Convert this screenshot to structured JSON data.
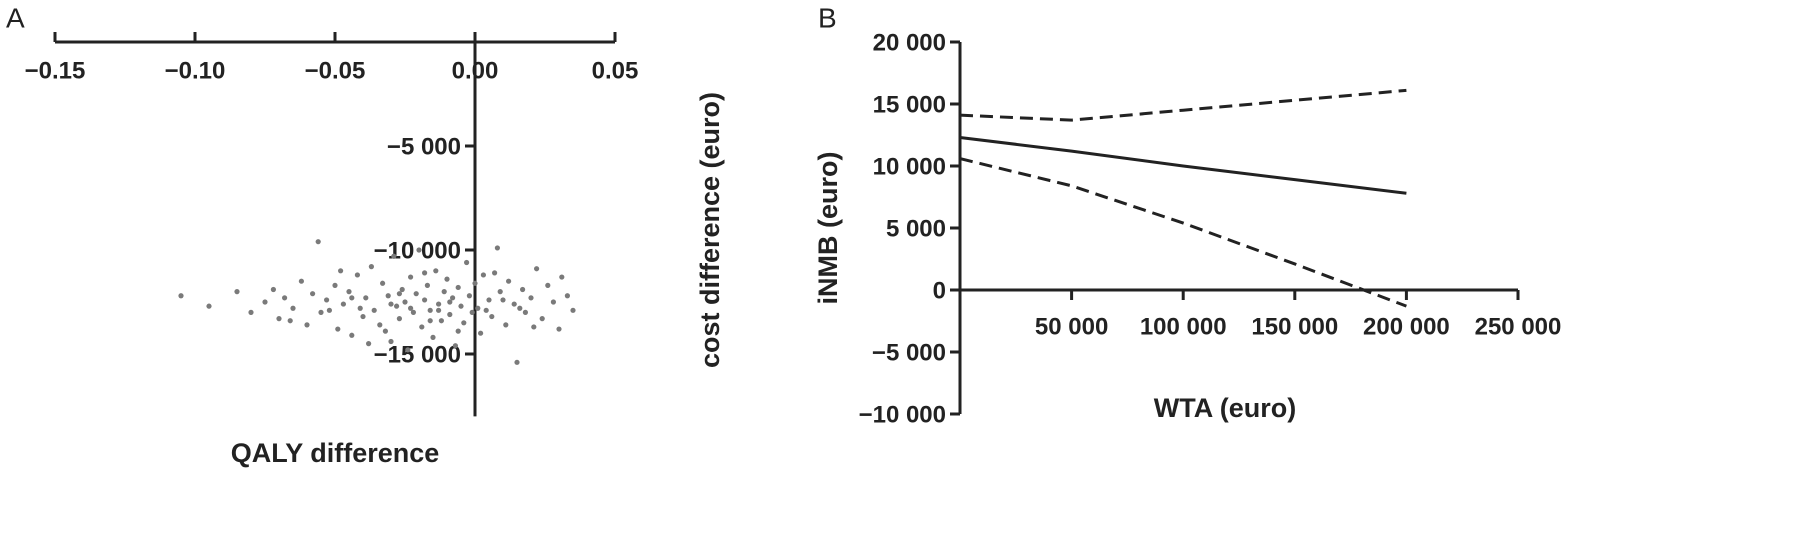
{
  "chart_data": [
    {
      "type": "scatter",
      "panel_label": "A",
      "xlabel": "QALY difference",
      "ylabel": "cost difference (euro)",
      "color": "#7a7a7a",
      "xlim": [
        -0.15,
        0.05
      ],
      "xticks": [
        {
          "value": -0.15,
          "label": "−0.15"
        },
        {
          "value": -0.1,
          "label": "−0.10"
        },
        {
          "value": -0.05,
          "label": "−0.05"
        },
        {
          "value": 0,
          "label": "0.00"
        },
        0.05
      ],
      "ylim": [
        -18000,
        0
      ],
      "yticks": [
        {
          "value": -5000,
          "label": "−5 000"
        },
        {
          "value": -10000,
          "label": "−10 000"
        },
        {
          "value": -15000,
          "label": "−15 000"
        }
      ],
      "x": [
        -0.105,
        -0.095,
        -0.085,
        -0.08,
        -0.075,
        -0.072,
        -0.07,
        -0.068,
        -0.065,
        -0.062,
        -0.06,
        -0.058,
        -0.056,
        -0.055,
        -0.053,
        -0.05,
        -0.049,
        -0.047,
        -0.045,
        -0.044,
        -0.042,
        -0.04,
        -0.039,
        -0.037,
        -0.036,
        -0.034,
        -0.033,
        -0.031,
        -0.03,
        -0.029,
        -0.028,
        -0.027,
        -0.026,
        -0.025,
        -0.024,
        -0.023,
        -0.022,
        -0.021,
        -0.02,
        -0.019,
        -0.018,
        -0.017,
        -0.016,
        -0.015,
        -0.014,
        -0.013,
        -0.012,
        -0.011,
        -0.01,
        -0.009,
        -0.008,
        -0.007,
        -0.006,
        -0.005,
        -0.004,
        -0.003,
        -0.002,
        -0.001,
        0,
        0.001,
        0.002,
        0.003,
        0.005,
        0.006,
        0.008,
        0.009,
        0.011,
        0.012,
        0.014,
        0.015,
        0.017,
        0.018,
        0.02,
        0.022,
        0.024,
        0.026,
        0.028,
        0.03,
        0.031,
        0.033,
        0.035,
        -0.048,
        -0.032,
        -0.018,
        -0.006,
        0.007,
        -0.041,
        -0.027,
        -0.013,
        0.004,
        -0.052,
        -0.038,
        -0.023,
        -0.009,
        0.016,
        -0.066,
        -0.044,
        -0.03,
        -0.016,
        0.01,
        0.021
      ],
      "values": [
        -12200,
        -12700,
        -12000,
        -13000,
        -12500,
        -11900,
        -13300,
        -12300,
        -12800,
        -11500,
        -13600,
        -12100,
        -9600,
        -13000,
        -12400,
        -11700,
        -13800,
        -12600,
        -12000,
        -14100,
        -11200,
        -13200,
        -12300,
        -10800,
        -12900,
        -13600,
        -11600,
        -12200,
        -14400,
        -10300,
        -12700,
        -13300,
        -11900,
        -12500,
        -14800,
        -11300,
        -13000,
        -12100,
        -10000,
        -13700,
        -12400,
        -11700,
        -12900,
        -14200,
        -11000,
        -12600,
        -13400,
        -12000,
        -11400,
        -13100,
        -12300,
        -14600,
        -11800,
        -12700,
        -13500,
        -10600,
        -12200,
        -13000,
        -11600,
        -12800,
        -14000,
        -11200,
        -12400,
        -13200,
        -9900,
        -12000,
        -13600,
        -11500,
        -12600,
        -15400,
        -11900,
        -13000,
        -12300,
        -10900,
        -13300,
        -11700,
        -12500,
        -13800,
        -11300,
        -12200,
        -12900,
        -11000,
        -13900,
        -11100,
        -13900,
        -11100,
        -12800,
        -12100,
        -12900,
        -12900,
        -12900,
        -14500,
        -12800,
        -12500,
        -12800,
        -13400,
        -12300,
        -12600,
        -13400,
        -12400,
        -13700
      ]
    },
    {
      "type": "line",
      "panel_label": "B",
      "xlabel": "WTA (euro)",
      "ylabel": "iNMB (euro)",
      "xlim": [
        0,
        250000
      ],
      "xticks": [
        {
          "value": 50000,
          "label": "50 000"
        },
        {
          "value": 100000,
          "label": "100 000"
        },
        {
          "value": 150000,
          "label": "150 000"
        },
        {
          "value": 200000,
          "label": "200 000"
        },
        {
          "value": 250000,
          "label": "250 000"
        }
      ],
      "ylim": [
        -10000,
        20000
      ],
      "yticks": [
        {
          "value": 20000,
          "label": "20 000"
        },
        {
          "value": 15000,
          "label": "15 000"
        },
        {
          "value": 10000,
          "label": "10 000"
        },
        {
          "value": 5000,
          "label": "5 000"
        },
        0,
        {
          "value": -5000,
          "label": "−5 000"
        },
        {
          "value": -10000,
          "label": "−10 000"
        }
      ],
      "x": [
        0,
        50000,
        100000,
        150000,
        200000
      ],
      "series": [
        {
          "color": "#222222",
          "dashed": false,
          "values": [
            12300,
            11200,
            10000,
            8900,
            7800
          ]
        },
        {
          "color": "#222222",
          "dashed": true,
          "values": [
            14100,
            13700,
            14500,
            15300,
            16100
          ]
        },
        {
          "color": "#222222",
          "dashed": true,
          "values": [
            10600,
            8400,
            5400,
            2100,
            -1300
          ]
        }
      ]
    }
  ]
}
